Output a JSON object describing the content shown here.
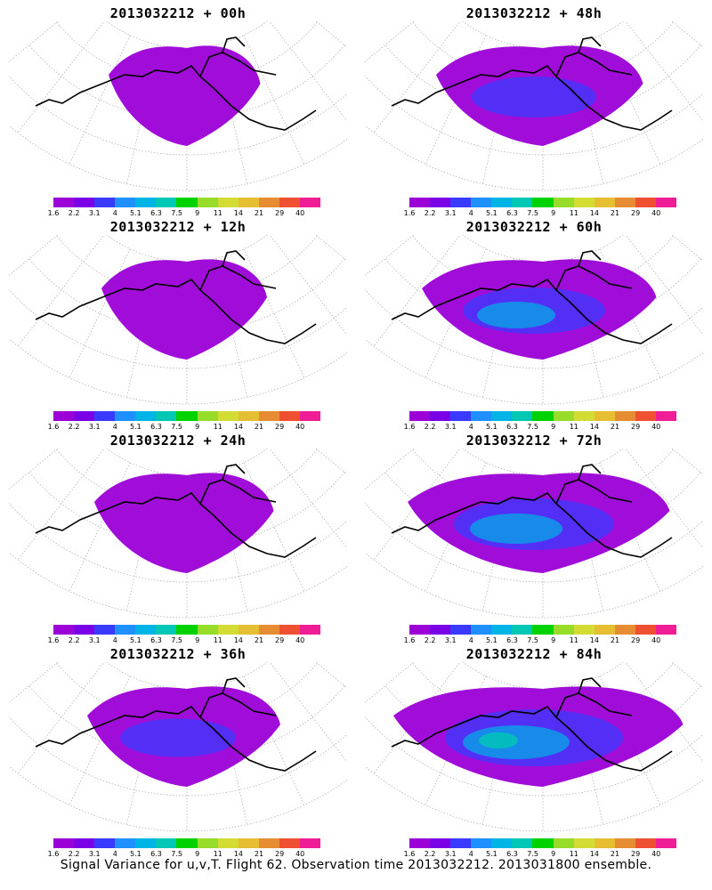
{
  "panels": [
    {
      "title": "2013032212 + 00h",
      "intensity": 0.15
    },
    {
      "title": "2013032212 + 48h",
      "intensity": 0.35
    },
    {
      "title": "2013032212 + 12h",
      "intensity": 0.2
    },
    {
      "title": "2013032212 + 60h",
      "intensity": 0.45
    },
    {
      "title": "2013032212 + 24h",
      "intensity": 0.25
    },
    {
      "title": "2013032212 + 72h",
      "intensity": 0.55
    },
    {
      "title": "2013032212 + 36h",
      "intensity": 0.3
    },
    {
      "title": "2013032212 + 84h",
      "intensity": 0.65
    }
  ],
  "legend": {
    "colors": [
      "#9b00d6",
      "#7a00e6",
      "#3a3aff",
      "#1e90ff",
      "#00b4e6",
      "#00c8b4",
      "#00d200",
      "#96dc28",
      "#d2dc32",
      "#e6be32",
      "#e68c32",
      "#f05032",
      "#f01e96"
    ],
    "ticks": [
      "1.6",
      "2.2",
      "3.1",
      "4",
      "5.1",
      "6.3",
      "7.5",
      "9",
      "11",
      "14",
      "21",
      "29",
      "40"
    ]
  },
  "caption": "Signal Variance for u,v,T. Flight 62. Observation time 2013032212. 2013031800 ensemble."
}
